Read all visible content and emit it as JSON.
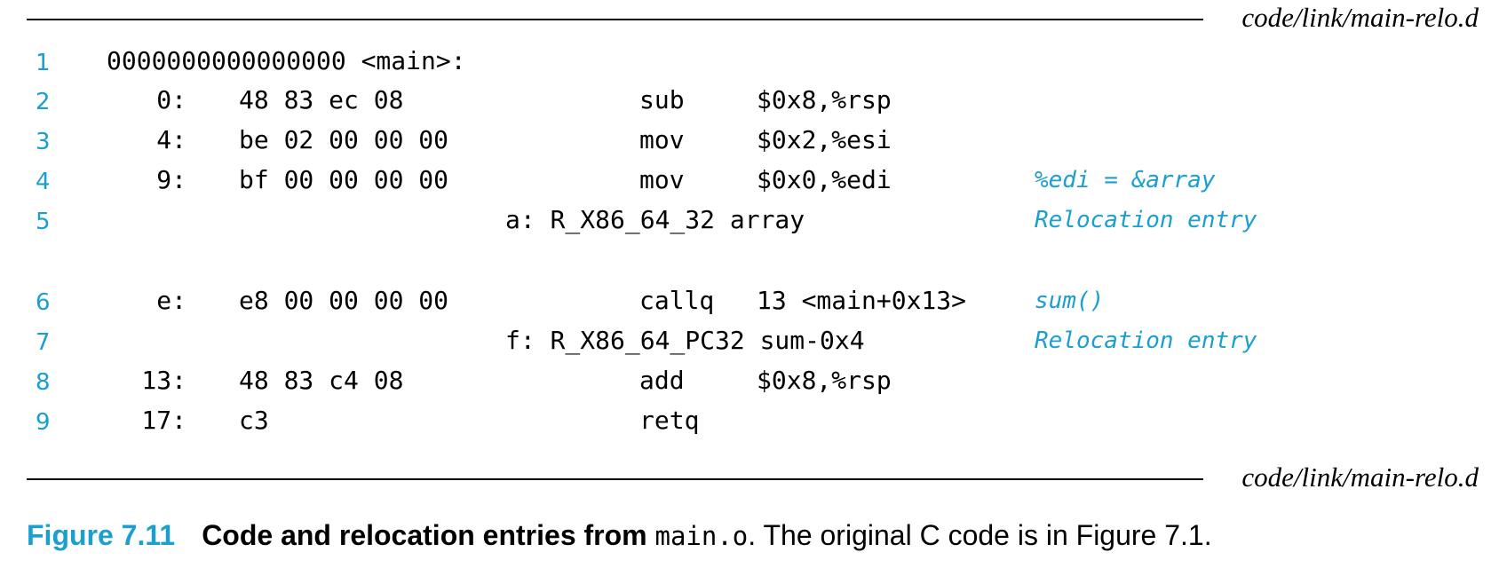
{
  "header": {
    "filename": "code/link/main-relo.d"
  },
  "footer": {
    "filename": "code/link/main-relo.d"
  },
  "lines": [
    {
      "num": "1",
      "main": "0000000000000000 <main>:"
    },
    {
      "num": "2",
      "addr": "0:",
      "bytes": "48 83 ec 08",
      "op": "sub",
      "arg": "$0x8,%rsp"
    },
    {
      "num": "3",
      "addr": "4:",
      "bytes": "be 02 00 00 00",
      "op": "mov",
      "arg": "$0x2,%esi"
    },
    {
      "num": "4",
      "addr": "9:",
      "bytes": "bf 00 00 00 00",
      "op": "mov",
      "arg": "$0x0,%edi",
      "comment": "%edi = &array"
    },
    {
      "num": "5",
      "reloc": "a: R_X86_64_32 array",
      "comment": "Relocation entry"
    },
    {
      "num": "6",
      "addr": "e:",
      "bytes": "e8 00 00 00 00",
      "op": "callq",
      "arg": "13 <main+0x13>",
      "comment": "sum()"
    },
    {
      "num": "7",
      "reloc": "f: R_X86_64_PC32 sum-0x4",
      "comment": "Relocation entry"
    },
    {
      "num": "8",
      "addr": "13:",
      "bytes": "48 83 c4 08",
      "op": "add",
      "arg": "$0x8,%rsp"
    },
    {
      "num": "9",
      "addr": "17:",
      "bytes": "c3",
      "op": "retq"
    }
  ],
  "caption": {
    "figure": "Figure 7.11",
    "bold_text": "Code and relocation entries from ",
    "code": "main.o",
    "rest": ". The original C code is in Figure 7.1."
  }
}
